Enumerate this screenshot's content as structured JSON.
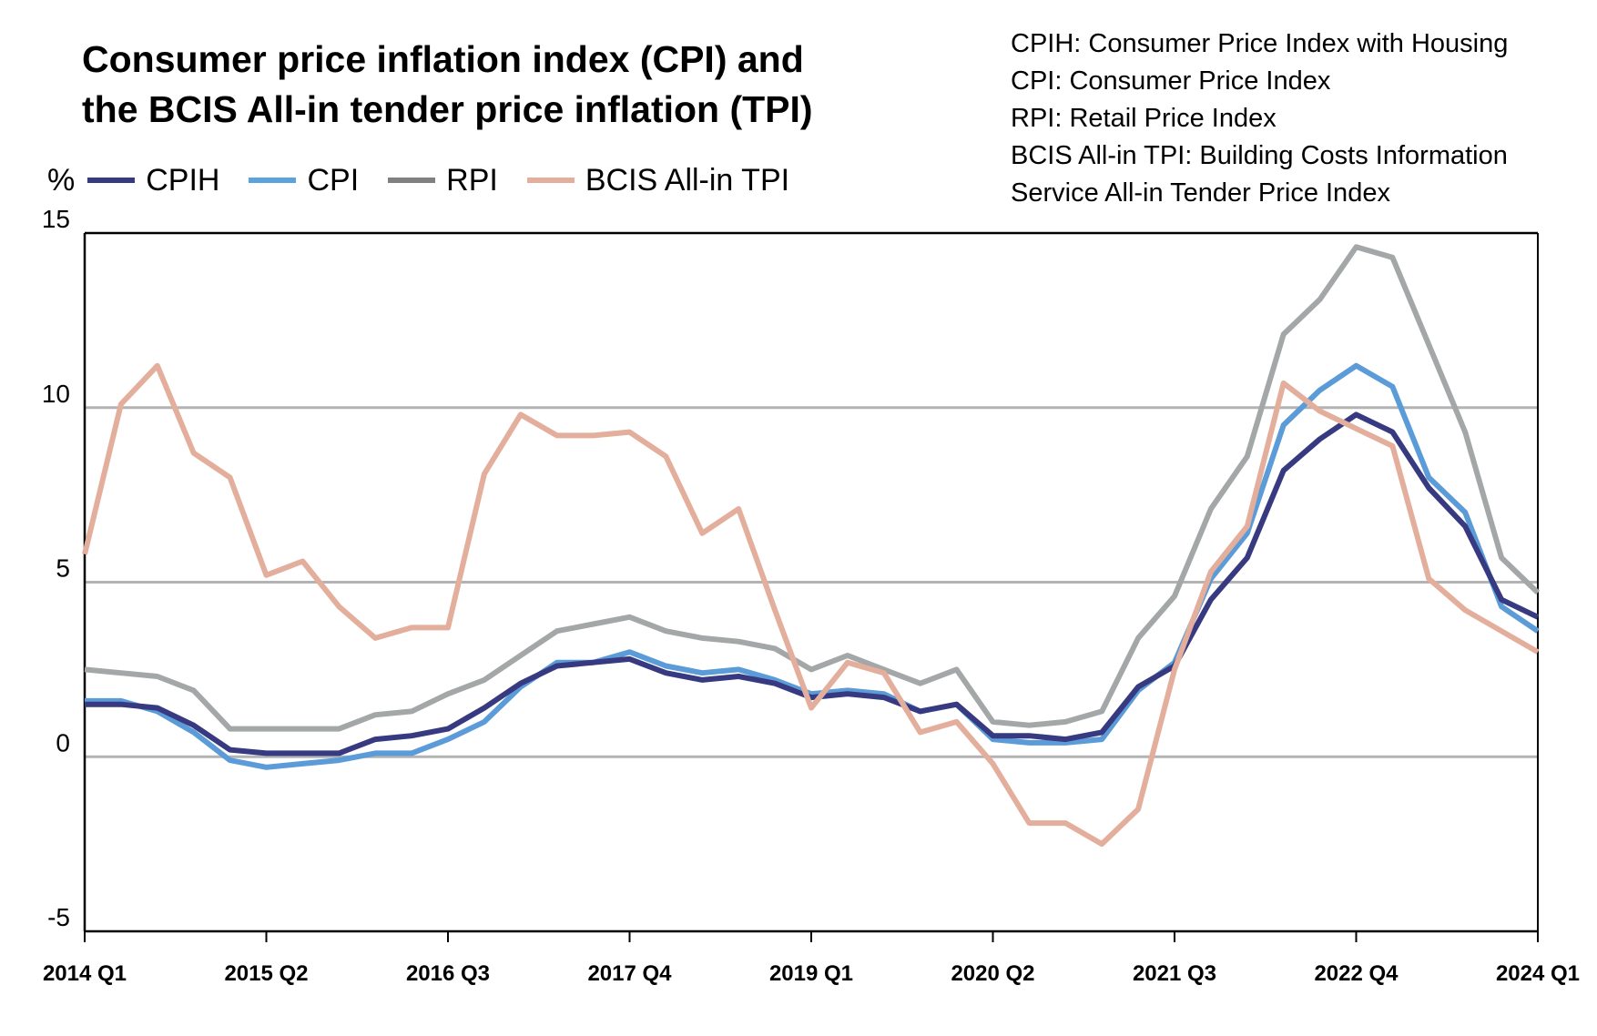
{
  "title_lines": [
    "Consumer price inflation index (CPI) and",
    "the BCIS All-in tender price inflation (TPI)"
  ],
  "notes": [
    "CPIH: Consumer Price Index with Housing",
    "CPI: Consumer Price Index",
    "RPI: Retail Price Index",
    "BCIS All-in TPI: Building Costs Information",
    "Service All-in Tender Price Index"
  ],
  "legend": {
    "unit": "%",
    "items": [
      {
        "label": "CPIH",
        "color": "#373a80"
      },
      {
        "label": "CPI",
        "color": "#5ba3dd"
      },
      {
        "label": "RPI",
        "color": "#808080"
      },
      {
        "label": "BCIS All-in TPI",
        "color": "#e3ae9c"
      }
    ]
  },
  "chart_data": {
    "type": "line",
    "title": "Consumer price inflation index (CPI) and the BCIS All-in tender price inflation (TPI)",
    "xlabel": "",
    "ylabel": "%",
    "ylim": [
      -5,
      15
    ],
    "yticks": [
      15,
      10,
      5,
      0,
      -5
    ],
    "gridlines_at": [
      10,
      5,
      0
    ],
    "legend_position": "top-left",
    "x": [
      "2014 Q1",
      "2014 Q2",
      "2014 Q3",
      "2014 Q4",
      "2015 Q1",
      "2015 Q2",
      "2015 Q3",
      "2015 Q4",
      "2016 Q1",
      "2016 Q2",
      "2016 Q3",
      "2016 Q4",
      "2017 Q1",
      "2017 Q2",
      "2017 Q3",
      "2017 Q4",
      "2018 Q1",
      "2018 Q2",
      "2018 Q3",
      "2018 Q4",
      "2019 Q1",
      "2019 Q2",
      "2019 Q3",
      "2019 Q4",
      "2020 Q1",
      "2020 Q2",
      "2020 Q3",
      "2020 Q4",
      "2021 Q1",
      "2021 Q2",
      "2021 Q3",
      "2021 Q4",
      "2022 Q1",
      "2022 Q2",
      "2022 Q3",
      "2022 Q4",
      "2023 Q1",
      "2023 Q2",
      "2023 Q3",
      "2023 Q4",
      "2024 Q1"
    ],
    "xtick_labels": [
      "2014 Q1",
      "2015 Q2",
      "2016 Q3",
      "2017 Q4",
      "2019 Q1",
      "2020 Q2",
      "2021 Q3",
      "2022 Q4",
      "2024 Q1"
    ],
    "xtick_every": 5,
    "series": [
      {
        "name": "RPI",
        "color": "#a4a7a8",
        "values": [
          2.5,
          2.4,
          2.3,
          1.9,
          0.8,
          0.8,
          0.8,
          0.8,
          1.2,
          1.3,
          1.8,
          2.2,
          2.9,
          3.6,
          3.8,
          4.0,
          3.6,
          3.4,
          3.3,
          3.1,
          2.5,
          2.9,
          2.5,
          2.1,
          2.5,
          1.0,
          0.9,
          1.0,
          1.3,
          3.4,
          4.6,
          7.1,
          8.6,
          12.1,
          13.1,
          14.6,
          14.3,
          11.8,
          9.3,
          5.7,
          4.7
        ]
      },
      {
        "name": "CPI",
        "color": "#5b9bd8",
        "values": [
          1.6,
          1.6,
          1.3,
          0.7,
          -0.1,
          -0.3,
          -0.2,
          -0.1,
          0.1,
          0.1,
          0.5,
          1.0,
          2.0,
          2.7,
          2.7,
          3.0,
          2.6,
          2.4,
          2.5,
          2.2,
          1.8,
          1.9,
          1.8,
          1.3,
          1.5,
          0.5,
          0.4,
          0.4,
          0.5,
          1.9,
          2.7,
          5.1,
          6.4,
          9.5,
          10.5,
          11.2,
          10.6,
          8.0,
          7.0,
          4.3,
          3.6
        ]
      },
      {
        "name": "CPIH",
        "color": "#373a80",
        "values": [
          1.5,
          1.5,
          1.4,
          0.9,
          0.2,
          0.1,
          0.1,
          0.1,
          0.5,
          0.6,
          0.8,
          1.4,
          2.1,
          2.6,
          2.7,
          2.8,
          2.4,
          2.2,
          2.3,
          2.1,
          1.7,
          1.8,
          1.7,
          1.3,
          1.5,
          0.6,
          0.6,
          0.5,
          0.7,
          2.0,
          2.6,
          4.5,
          5.7,
          8.2,
          9.1,
          9.8,
          9.3,
          7.7,
          6.6,
          4.5,
          4.0
        ]
      },
      {
        "name": "BCIS All-in TPI",
        "color": "#e3ae9c",
        "values": [
          5.8,
          10.1,
          11.2,
          8.7,
          8.0,
          5.2,
          5.6,
          4.3,
          3.4,
          3.7,
          3.7,
          8.1,
          9.8,
          9.2,
          9.2,
          9.3,
          8.6,
          6.4,
          7.1,
          4.2,
          1.4,
          2.7,
          2.4,
          0.7,
          1.0,
          -0.2,
          -1.9,
          -1.9,
          -2.5,
          -1.5,
          2.5,
          5.3,
          6.6,
          10.7,
          9.9,
          9.4,
          8.9,
          5.1,
          4.2,
          3.6,
          3.0
        ]
      }
    ]
  }
}
